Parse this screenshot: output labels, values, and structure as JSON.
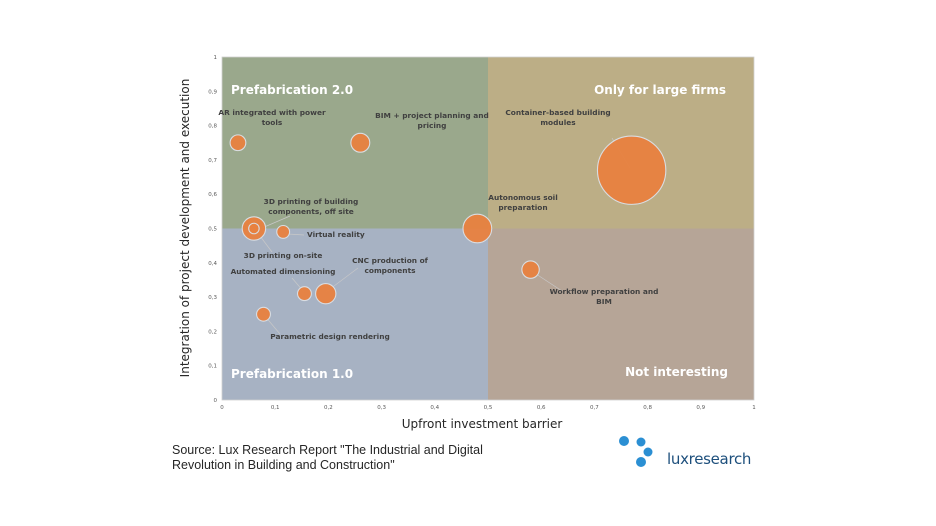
{
  "chart_data": {
    "type": "bubble",
    "title": "",
    "xlabel": "Upfront investment barrier",
    "ylabel": "Integration of project development and execution",
    "xlim": [
      0,
      1
    ],
    "ylim": [
      0,
      1
    ],
    "xticks": [
      "0",
      "0,1",
      "0,2",
      "0,3",
      "0,4",
      "0,5",
      "0,6",
      "0,7",
      "0,8",
      "0,9",
      "1"
    ],
    "yticks": [
      "0",
      "0,1",
      "0,2",
      "0,3",
      "0,4",
      "0,5",
      "0,6",
      "0,7",
      "0,8",
      "0,9",
      "1"
    ],
    "quadrants": [
      {
        "name": "Prefabrication 2.0",
        "x": [
          0,
          0.5
        ],
        "y": [
          0.5,
          1
        ],
        "color": "#9aa88c",
        "label_pos": "top-left"
      },
      {
        "name": "Only for large firms",
        "x": [
          0.5,
          1
        ],
        "y": [
          0.5,
          1
        ],
        "color": "#bcae86",
        "label_pos": "top-right"
      },
      {
        "name": "Prefabrication 1.0",
        "x": [
          0,
          0.5
        ],
        "y": [
          0,
          0.5
        ],
        "color": "#a7b2c3",
        "label_pos": "bottom-left"
      },
      {
        "name": "Not interesting",
        "x": [
          0.5,
          1
        ],
        "y": [
          0,
          0.5
        ],
        "color": "#b6a597",
        "label_pos": "bottom-right"
      }
    ],
    "bubble_color": "#e8813f",
    "points": [
      {
        "label": "AR integrated with power tools",
        "x": 0.03,
        "y": 0.75,
        "size": 0.45
      },
      {
        "label": "BIM + project planning and pricing",
        "x": 0.26,
        "y": 0.75,
        "size": 0.65
      },
      {
        "label": "Container-based building modules",
        "x": 0.77,
        "y": 0.67,
        "size": 8.5
      },
      {
        "label": "3D printing of building components, off site",
        "x": 0.06,
        "y": 0.5,
        "size": 1.0
      },
      {
        "label": "Virtual reality",
        "x": 0.115,
        "y": 0.49,
        "size": 0.3
      },
      {
        "label": "Autonomous soil preparation",
        "x": 0.48,
        "y": 0.5,
        "size": 1.5
      },
      {
        "label": "3D printing on-site",
        "x": 0.06,
        "y": 0.5,
        "size": 0.2
      },
      {
        "label": "Automated dimensioning",
        "x": 0.155,
        "y": 0.31,
        "size": 0.35
      },
      {
        "label": "CNC production of components",
        "x": 0.195,
        "y": 0.31,
        "size": 0.75
      },
      {
        "label": "Workflow preparation and BIM",
        "x": 0.58,
        "y": 0.38,
        "size": 0.55
      },
      {
        "label": "Parametric design rendering",
        "x": 0.078,
        "y": 0.25,
        "size": 0.35
      }
    ]
  },
  "source": {
    "line1": "Source: Lux Research Report \"The Industrial and Digital",
    "line2": "Revolution in Building and Construction\""
  },
  "logo": {
    "text": "luxresearch",
    "color": "#1d4f7c",
    "dot_color": "#2b8fd3"
  }
}
